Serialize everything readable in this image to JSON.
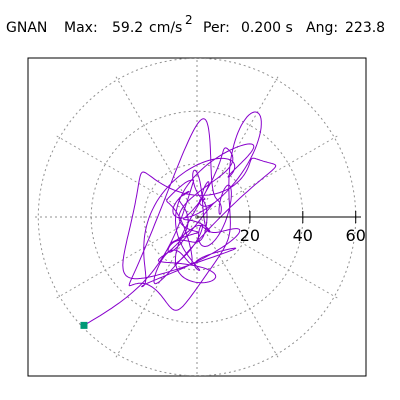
{
  "header": {
    "station": "GNAN",
    "max_label": "Max:",
    "max_value": "59.2",
    "max_unit": "cm/s",
    "max_unit_exp": "2",
    "period_label": "Per:",
    "period_value": "0.200 s",
    "angle_label": "Ang:",
    "angle_value": "223.8"
  },
  "chart_data": {
    "type": "line",
    "plot": "polar particle-motion trace",
    "title": "",
    "xlabel": "",
    "ylabel": "",
    "radial_ticks": [
      20,
      40,
      60
    ],
    "radial_tick_labels": [
      "20",
      "40",
      "60"
    ],
    "rlim": [
      0,
      62
    ],
    "grid_circles": [
      20,
      40,
      60
    ],
    "grid_spokes_deg": [
      0,
      30,
      60,
      90,
      120,
      150,
      180,
      210,
      240,
      270,
      300,
      330
    ],
    "grid": true,
    "max_amplitude": 59.2,
    "max_angle_deg": 223.8,
    "trace_color": "#8800cc",
    "end_marker_color": "#009977",
    "trace_shape": "dense interleaved elliptical loops centred on the origin, mostly within 45 units, oriented along the NE-SW direction, with excursions to about 50 units NE and 47 units SW, ending at the green square marker"
  }
}
